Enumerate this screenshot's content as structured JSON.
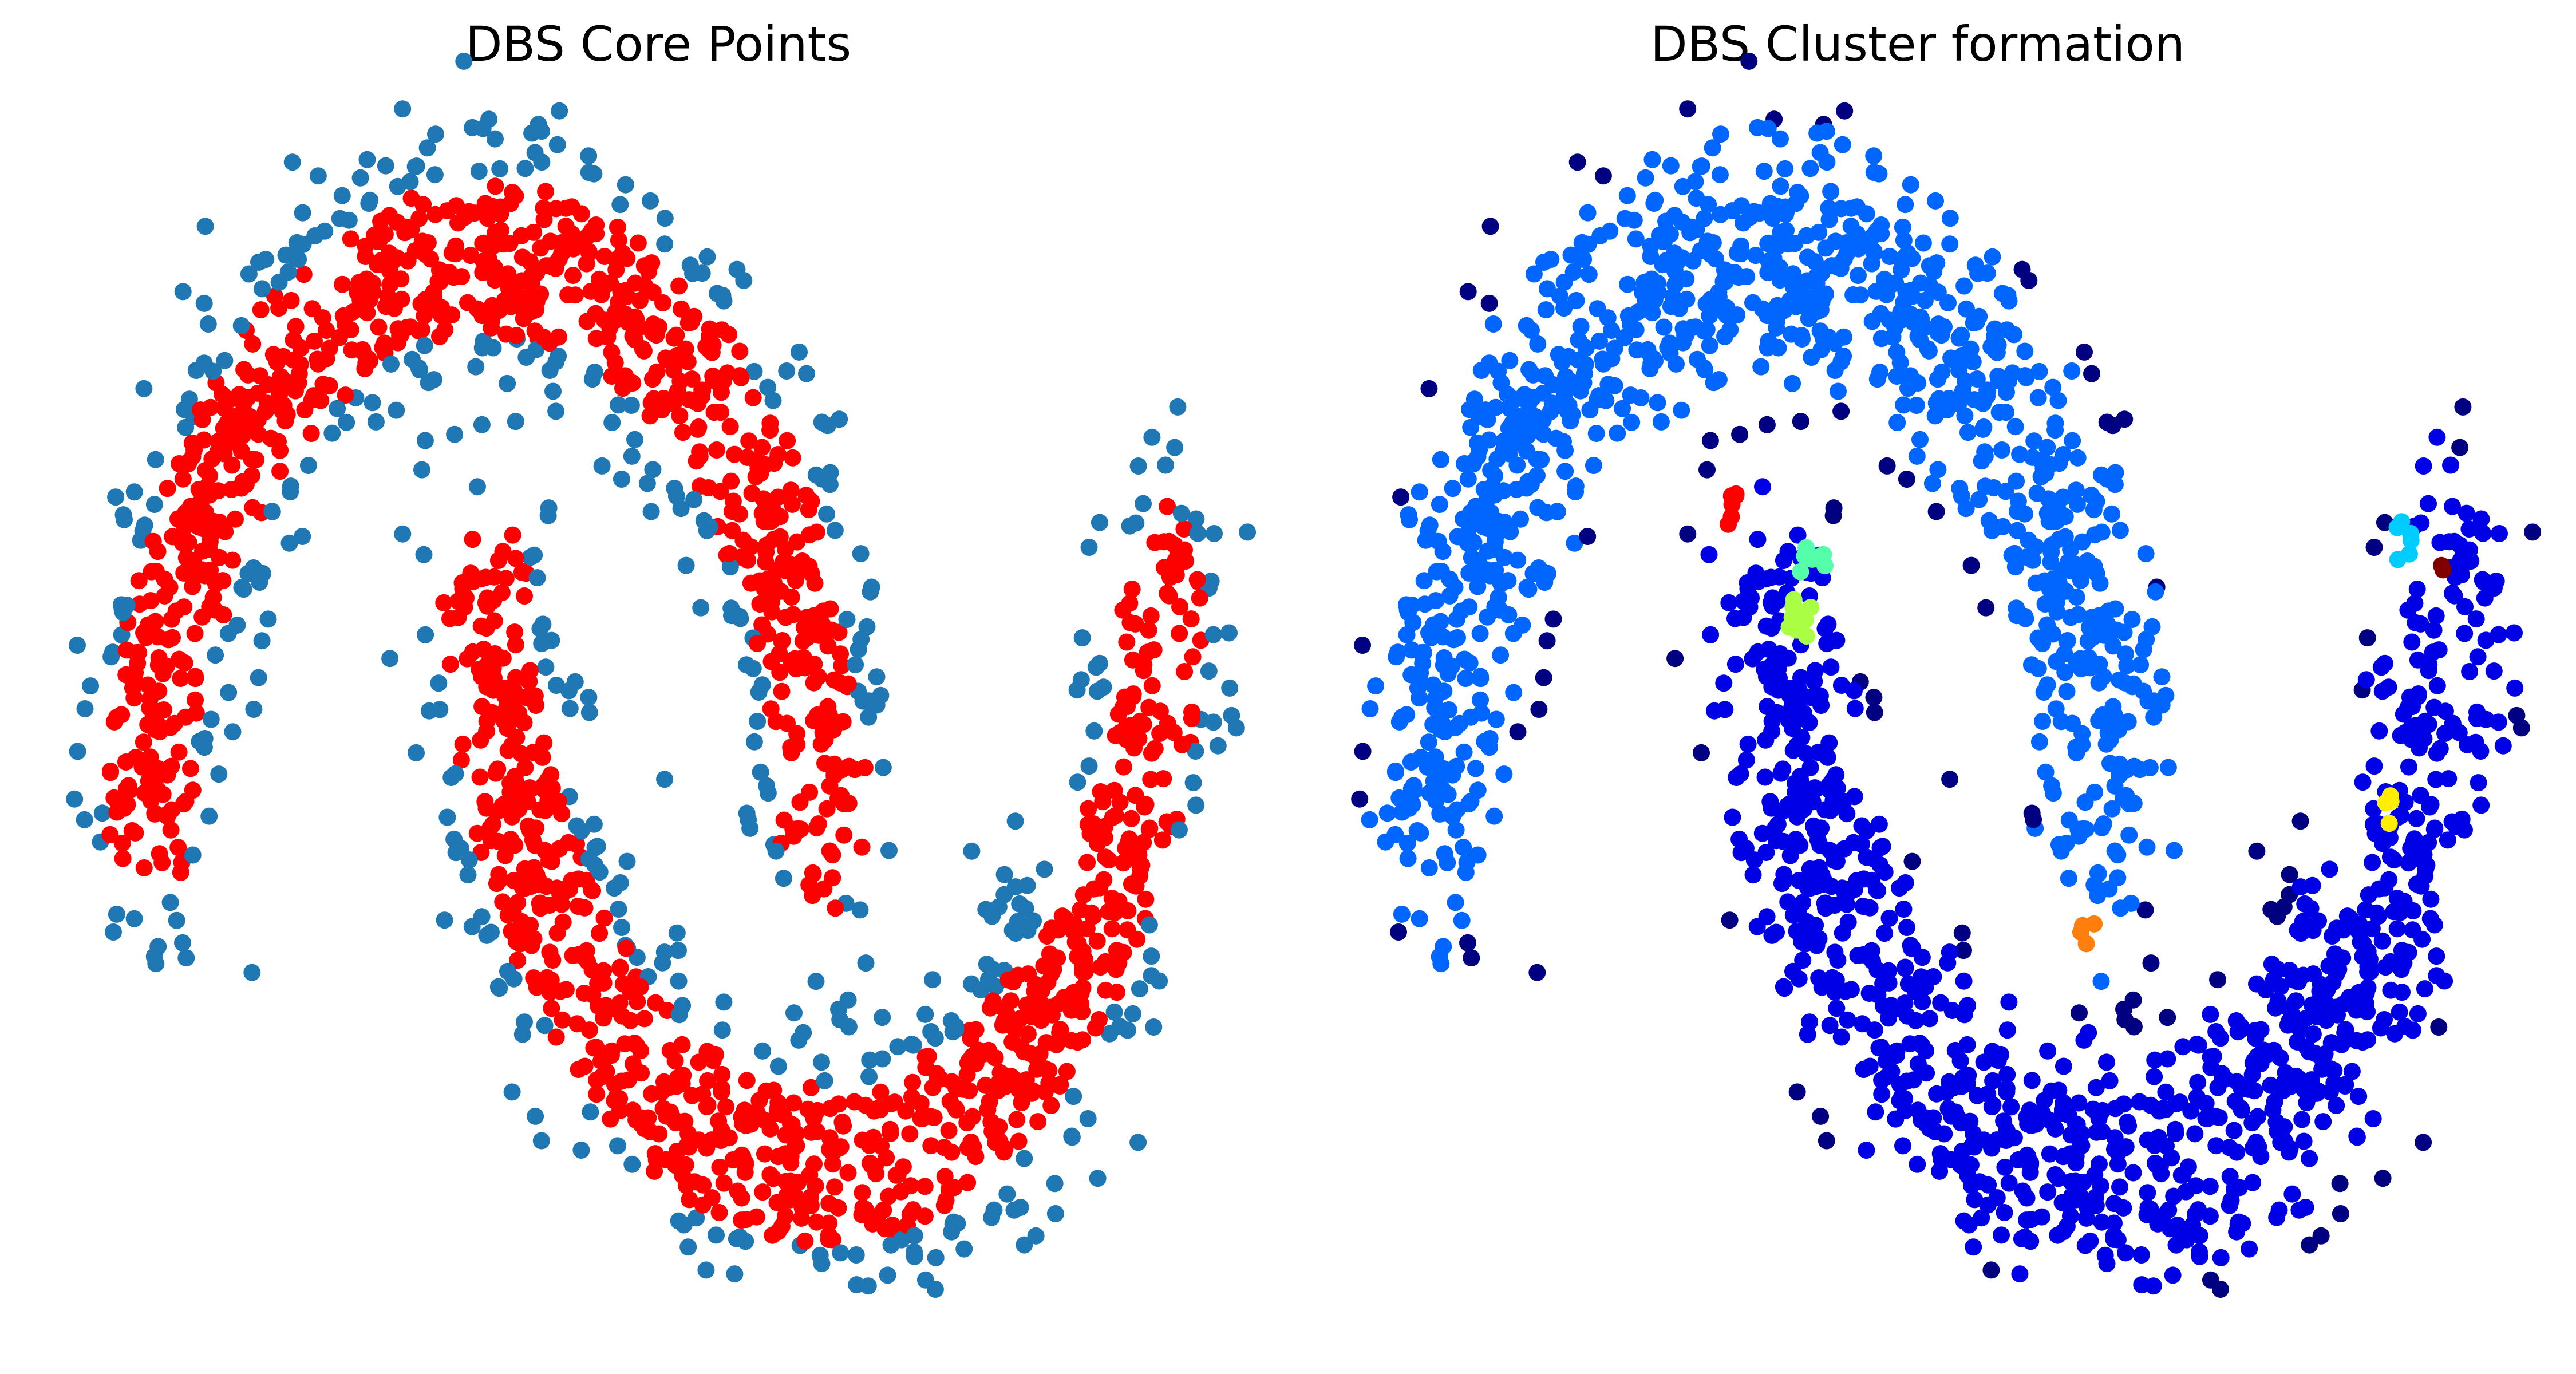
{
  "chart_data": [
    {
      "type": "scatter",
      "title": "DBS Core Points",
      "axis_visible": false,
      "grid": false,
      "legend": "none",
      "xlim": [
        -1.25,
        2.25
      ],
      "ylim": [
        -0.75,
        1.25
      ],
      "series": [
        {
          "role": "border",
          "color": "#1f77b4",
          "count": 520
        },
        {
          "role": "core",
          "color": "#ff0000",
          "count": 1480
        }
      ]
    },
    {
      "type": "scatter",
      "title": "DBS Cluster formation",
      "axis_visible": false,
      "grid": false,
      "legend": "none",
      "xlim": [
        -1.25,
        2.25
      ],
      "ylim": [
        -0.75,
        1.25
      ],
      "series": [
        {
          "role": "noise",
          "color": "#000080",
          "count": 150
        },
        {
          "role": "cluster-upper-moon",
          "color": "#0066ff",
          "count": 930
        },
        {
          "role": "cluster-lower-moon",
          "color": "#0000e6",
          "count": 880
        },
        {
          "role": "cluster-small",
          "color": "#ff0000",
          "center": [
            -0.12,
            0.58
          ],
          "count": 6
        },
        {
          "role": "cluster-small",
          "color": "#55ffaa",
          "center": [
            0.12,
            0.5
          ],
          "count": 8
        },
        {
          "role": "cluster-small",
          "color": "#aaff44",
          "center": [
            0.08,
            0.4
          ],
          "count": 10
        },
        {
          "role": "cluster-small",
          "color": "#00ccff",
          "center": [
            1.88,
            0.54
          ],
          "count": 7
        },
        {
          "role": "cluster-small",
          "color": "#800000",
          "center": [
            1.97,
            0.48
          ],
          "count": 2
        },
        {
          "role": "cluster-small",
          "color": "#ffee00",
          "center": [
            1.82,
            0.1
          ],
          "count": 4
        },
        {
          "role": "cluster-small",
          "color": "#ff7f0e",
          "center": [
            0.92,
            -0.12
          ],
          "count": 4
        }
      ]
    }
  ]
}
